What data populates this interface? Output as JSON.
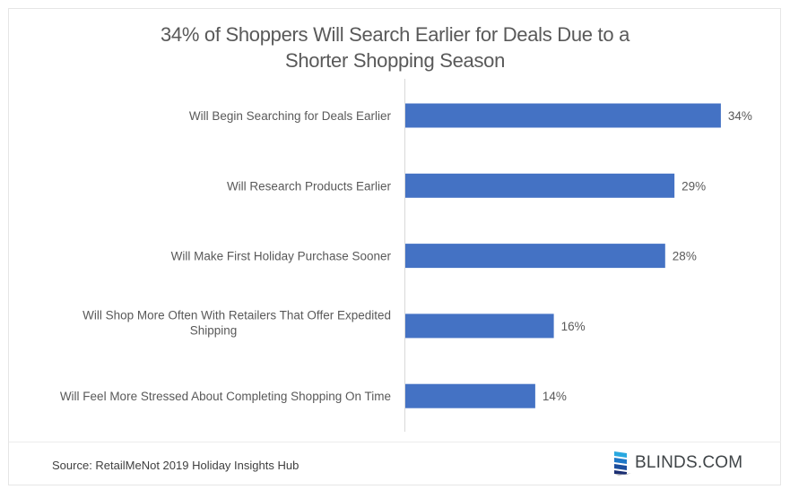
{
  "chart_data": {
    "type": "bar",
    "orientation": "horizontal",
    "title": "34% of Shoppers Will Search Earlier for Deals Due to a Shorter Shopping Season",
    "title_lines": [
      "34% of Shoppers Will Search Earlier for Deals Due to a",
      "Shorter Shopping Season"
    ],
    "categories": [
      [
        "Will Begin Searching for Deals Earlier"
      ],
      [
        "Will Research Products Earlier"
      ],
      [
        "Will Make First  Holiday Purchase Sooner"
      ],
      [
        "Will Shop More Often With Retailers That Offer Expedited",
        "Shipping"
      ],
      [
        "Will Feel More Stressed About Completing Shopping On Time"
      ]
    ],
    "values": [
      34,
      29,
      28,
      16,
      14
    ],
    "data_labels": [
      "34%",
      "29%",
      "28%",
      "16%",
      "14%"
    ],
    "xlabel": "",
    "ylabel": "",
    "xlim": [
      0,
      36
    ],
    "grid": false,
    "legend": "none",
    "bar_color": "#4472c4"
  },
  "footer": {
    "source": "Source: RetailMeNot 2019  Holiday Insights Hub",
    "logo_text": "BLINDS.COM"
  }
}
